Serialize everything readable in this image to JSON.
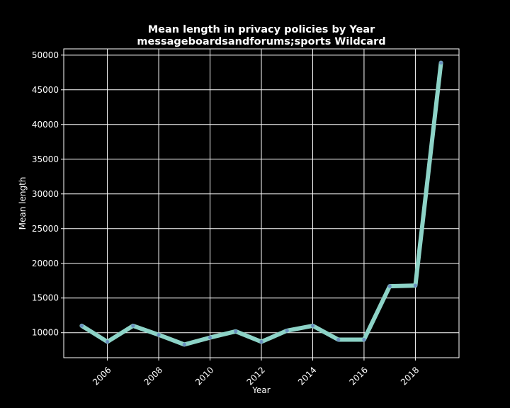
{
  "chart_data": {
    "type": "line",
    "title_line1": "Mean length in privacy policies by Year",
    "title_line2": "messageboardsandforums;sports Wildcard",
    "xlabel": "Year",
    "ylabel": "Mean length",
    "x": [
      2005,
      2006,
      2007,
      2008,
      2009,
      2010,
      2011,
      2012,
      2013,
      2014,
      2015,
      2016,
      2017,
      2018,
      2019
    ],
    "series": [
      {
        "values": [
          11000,
          8700,
          11000,
          9700,
          8300,
          9300,
          10200,
          8700,
          10300,
          11000,
          9000,
          9000,
          16700,
          16800,
          48900
        ],
        "color": "#8dd3c7",
        "marker_color": "#6a8fc0"
      }
    ],
    "xticks": [
      "2006",
      "2008",
      "2010",
      "2012",
      "2014",
      "2016",
      "2018"
    ],
    "yticks": [
      "10000",
      "15000",
      "20000",
      "25000",
      "30000",
      "35000",
      "40000",
      "45000",
      "50000"
    ],
    "xlim": [
      2004.3,
      2019.7
    ],
    "ylim": [
      6400,
      50900
    ],
    "grid": true,
    "background": "#000000"
  }
}
